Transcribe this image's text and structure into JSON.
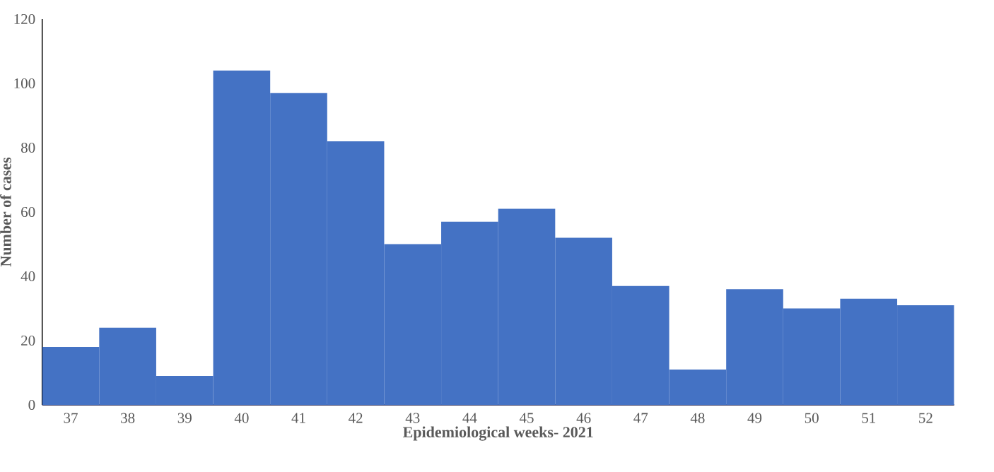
{
  "chart_data": {
    "type": "bar",
    "xlabel": "Epidemiological weeks- 2021",
    "ylabel": "Number of cases",
    "categories": [
      "37",
      "38",
      "39",
      "40",
      "41",
      "42",
      "43",
      "44",
      "45",
      "46",
      "47",
      "48",
      "49",
      "50",
      "51",
      "52"
    ],
    "values": [
      18,
      24,
      9,
      104,
      97,
      82,
      50,
      57,
      61,
      52,
      37,
      11,
      36,
      30,
      33,
      31
    ],
    "color": "#4472c4",
    "ylim": [
      0,
      120
    ],
    "yticks": [
      0,
      20,
      40,
      60,
      80,
      100,
      120
    ]
  }
}
